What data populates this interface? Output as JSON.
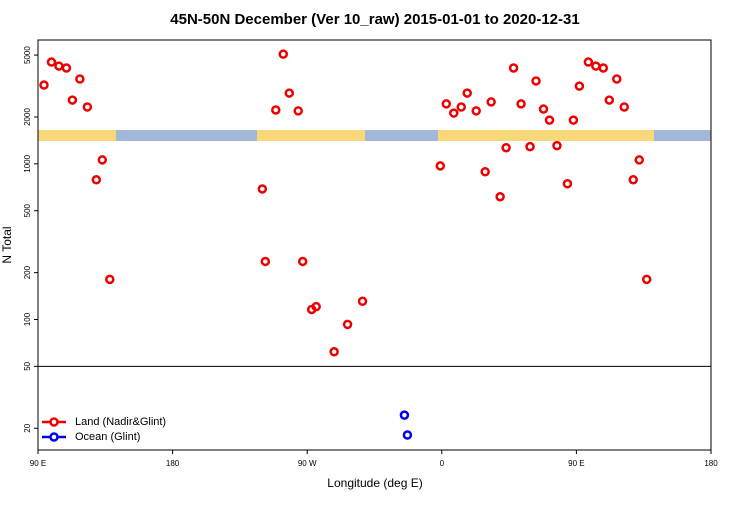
{
  "chart_data": {
    "type": "scatter",
    "title": "45N-50N December (Ver 10_raw)   2015-01-01 to 2020-12-31",
    "x_label": "Longitude (deg E)",
    "y_label": "N Total",
    "log_y": true,
    "xlim": [
      -270,
      180
    ],
    "ylim": [
      14.5,
      6250
    ],
    "xticks": [
      {
        "value": -270,
        "label": "90 E"
      },
      {
        "value": -180,
        "label": "180"
      },
      {
        "value": -90,
        "label": "90 W"
      },
      0,
      {
        "value": 90,
        "label": "90 E"
      },
      180
    ],
    "yticks": [
      20,
      50,
      100,
      200,
      500,
      1000,
      2000,
      5000
    ],
    "reference_line": 50,
    "legend": "bottom-left",
    "series": [
      {
        "name": "Land (Nadir&Glint)",
        "color": "#ee0000",
        "x": [
          -266,
          -261,
          -256,
          -251,
          -242,
          -247,
          -237,
          -227,
          -231,
          -222,
          -120,
          -118,
          -111,
          -106,
          -102,
          -96,
          -93,
          -87,
          -84,
          -72,
          -63,
          -53,
          -1,
          3,
          8,
          13,
          17,
          23,
          29,
          33,
          39,
          43,
          48,
          53,
          59,
          63,
          68,
          72,
          77,
          84,
          88,
          92,
          98,
          103,
          108,
          112,
          117,
          122,
          132,
          128,
          137
        ],
        "values": [
          3210,
          4510,
          4250,
          4130,
          3510,
          2570,
          2320,
          1060,
          790,
          181,
          690,
          236,
          2220,
          5070,
          2850,
          2190,
          236,
          116,
          121,
          62,
          93,
          131,
          970,
          2430,
          2120,
          2320,
          2850,
          2190,
          890,
          2500,
          615,
          1270,
          4130,
          2430,
          1290,
          3410,
          2250,
          1910,
          1310,
          745,
          1910,
          3160,
          4510,
          4250,
          4130,
          2570,
          3510,
          2320,
          1060,
          790,
          181
        ]
      },
      {
        "name": "Ocean (Glint)",
        "color": "#0000ee",
        "x": [
          -25,
          -23
        ],
        "values": [
          24.3,
          18.1
        ]
      }
    ]
  }
}
